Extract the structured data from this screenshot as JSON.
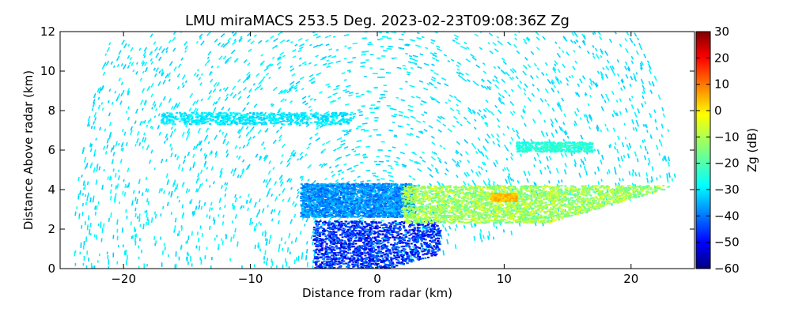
{
  "chart_data": {
    "type": "heatmap",
    "subtype": "radar-rhi",
    "title": "LMU miraMACS 253.5 Deg. 2023-02-23T09:08:36Z  Zg",
    "xlabel": "Distance from radar (km)",
    "ylabel": "Distance Above radar  (km)",
    "xlim": [
      -25,
      25
    ],
    "ylim": [
      0,
      12
    ],
    "x_ticks": [
      -20,
      -10,
      0,
      10,
      20
    ],
    "y_ticks": [
      0,
      2,
      4,
      6,
      8,
      10,
      12
    ],
    "grid": false,
    "colorbar": {
      "label": "Zg (dB)",
      "range": [
        -60,
        30
      ],
      "ticks": [
        30,
        20,
        10,
        0,
        -10,
        -20,
        -30,
        -40,
        -50,
        -60
      ],
      "colormap": "jet",
      "colors": [
        "#00007f",
        "#0000ff",
        "#007fff",
        "#00ffff",
        "#7fff7f",
        "#ffff00",
        "#ff7f00",
        "#ff0000",
        "#7f0000"
      ]
    },
    "scan_coverage": {
      "max_range_km": 24,
      "lower_edge_right": [
        [
          1,
          0
        ],
        [
          23.7,
          4.2
        ]
      ],
      "lower_edge_left_elevation_ok": true
    },
    "features": [
      {
        "name": "noise-speckle",
        "x": [
          -24,
          24
        ],
        "y": [
          0,
          12
        ],
        "zg_db": -28
      },
      {
        "name": "upper-cloud-layer",
        "x": [
          -17,
          -2
        ],
        "y": [
          7.3,
          7.9
        ],
        "zg_db": -28
      },
      {
        "name": "mid-cloud-layer",
        "x": [
          11,
          17
        ],
        "y": [
          5.9,
          6.4
        ],
        "zg_db": -23
      },
      {
        "name": "main-echo-left",
        "x": [
          -6,
          3
        ],
        "y": [
          2.6,
          4.3
        ],
        "zg_db": -36
      },
      {
        "name": "main-echo-right",
        "x": [
          2,
          23
        ],
        "y": [
          2.3,
          4.2
        ],
        "zg_db": -12
      },
      {
        "name": "main-echo-core",
        "x": [
          9,
          11
        ],
        "y": [
          3.4,
          3.8
        ],
        "zg_db": 2
      },
      {
        "name": "near-radar-low",
        "x": [
          -5,
          5
        ],
        "y": [
          0,
          2.4
        ],
        "zg_db": -45
      }
    ]
  }
}
